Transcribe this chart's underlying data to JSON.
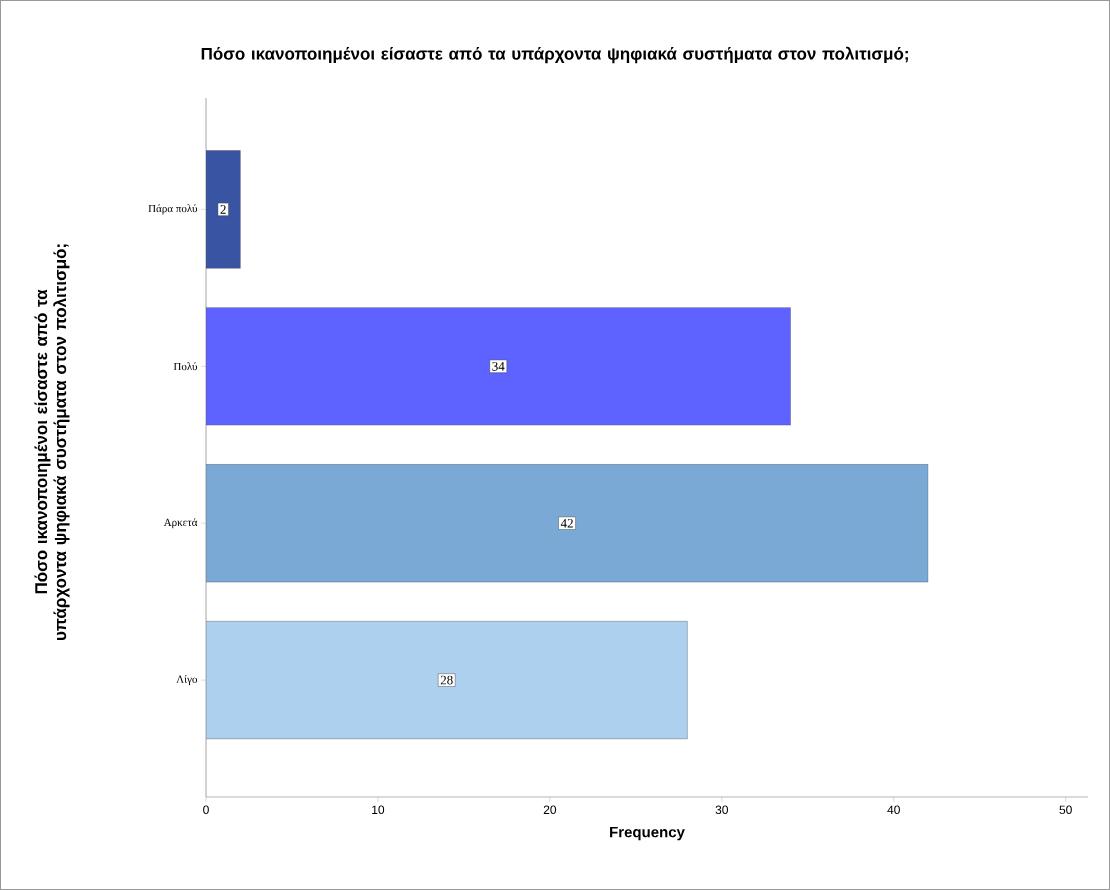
{
  "chart_data": {
    "type": "bar",
    "orientation": "horizontal",
    "title": "Πόσο ικανοποιημένοι είσαστε από τα υπάρχοντα ψηφιακά συστήματα στον πολιτισμό;",
    "xlabel": "Frequency",
    "ylabel": "Πόσο ικανοποιημένοι είσαστε από τα υπάρχοντα ψηφιακά συστήματα στον πολιτισμό;",
    "categories": [
      "Πάρα πολύ",
      "Πολύ",
      "Αρκετά",
      "Λίγο"
    ],
    "values": [
      2,
      34,
      42,
      28
    ],
    "colors": [
      "#3a54a4",
      "#5e62fe",
      "#7aa9d6",
      "#acd0ee"
    ],
    "data_labels": true,
    "xlim": [
      0,
      51.3
    ],
    "xticks": [
      0,
      10,
      20,
      30,
      40,
      50
    ],
    "grid": false
  }
}
